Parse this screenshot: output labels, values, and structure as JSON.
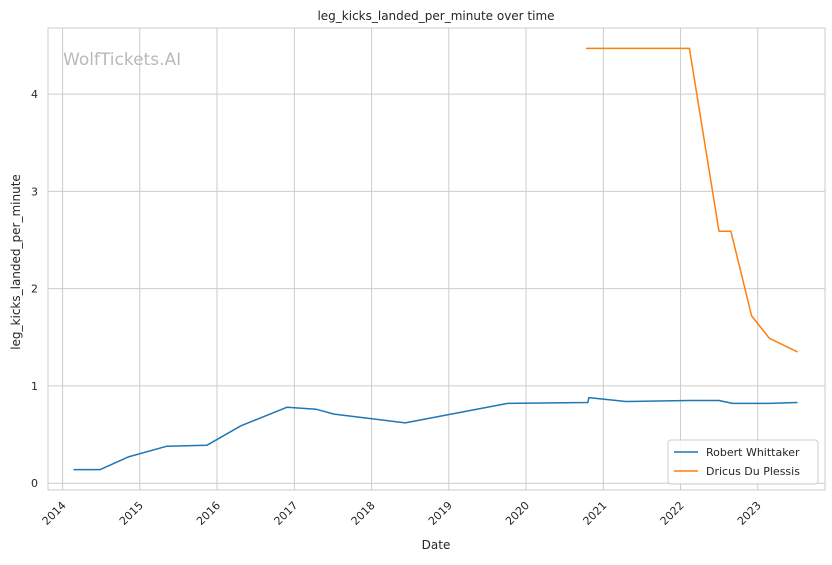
{
  "chart_data": {
    "type": "line",
    "title": "leg_kicks_landed_per_minute over time",
    "xlabel": "Date",
    "ylabel": "leg_kicks_landed_per_minute",
    "watermark": "WolfTickets.AI",
    "x_ticks": [
      "2014",
      "2015",
      "2016",
      "2017",
      "2018",
      "2019",
      "2020",
      "2021",
      "2022",
      "2023"
    ],
    "y_ticks": [
      "0",
      "1",
      "2",
      "3",
      "4"
    ],
    "xlim": [
      "2013-10-24",
      "2023-11-15"
    ],
    "ylim": [
      -0.07,
      4.68
    ],
    "grid": true,
    "legend_position": "lower right",
    "series": [
      {
        "name": "Robert Whittaker",
        "color": "#1f77b4",
        "points": [
          [
            "2014-02-22",
            0.14
          ],
          [
            "2014-06-28",
            0.14
          ],
          [
            "2014-11-08",
            0.27
          ],
          [
            "2015-05-09",
            0.38
          ],
          [
            "2015-11-14",
            0.39
          ],
          [
            "2016-04-23",
            0.59
          ],
          [
            "2016-11-26",
            0.78
          ],
          [
            "2017-04-15",
            0.76
          ],
          [
            "2017-07-08",
            0.71
          ],
          [
            "2018-06-09",
            0.62
          ],
          [
            "2019-10-06",
            0.82
          ],
          [
            "2020-10-20",
            0.83
          ],
          [
            "2020-10-24",
            0.88
          ],
          [
            "2021-04-17",
            0.84
          ],
          [
            "2022-02-12",
            0.85
          ],
          [
            "2022-07-02",
            0.85
          ],
          [
            "2022-09-03",
            0.82
          ],
          [
            "2023-02-25",
            0.82
          ],
          [
            "2023-07-08",
            0.83
          ]
        ]
      },
      {
        "name": "Dricus Du Plessis",
        "color": "#ff7f0e",
        "points": [
          [
            "2020-10-11",
            4.47
          ],
          [
            "2022-02-12",
            4.47
          ],
          [
            "2022-07-02",
            2.59
          ],
          [
            "2022-08-27",
            2.59
          ],
          [
            "2022-12-03",
            1.72
          ],
          [
            "2023-02-25",
            1.49
          ],
          [
            "2023-07-08",
            1.35
          ]
        ]
      }
    ]
  }
}
